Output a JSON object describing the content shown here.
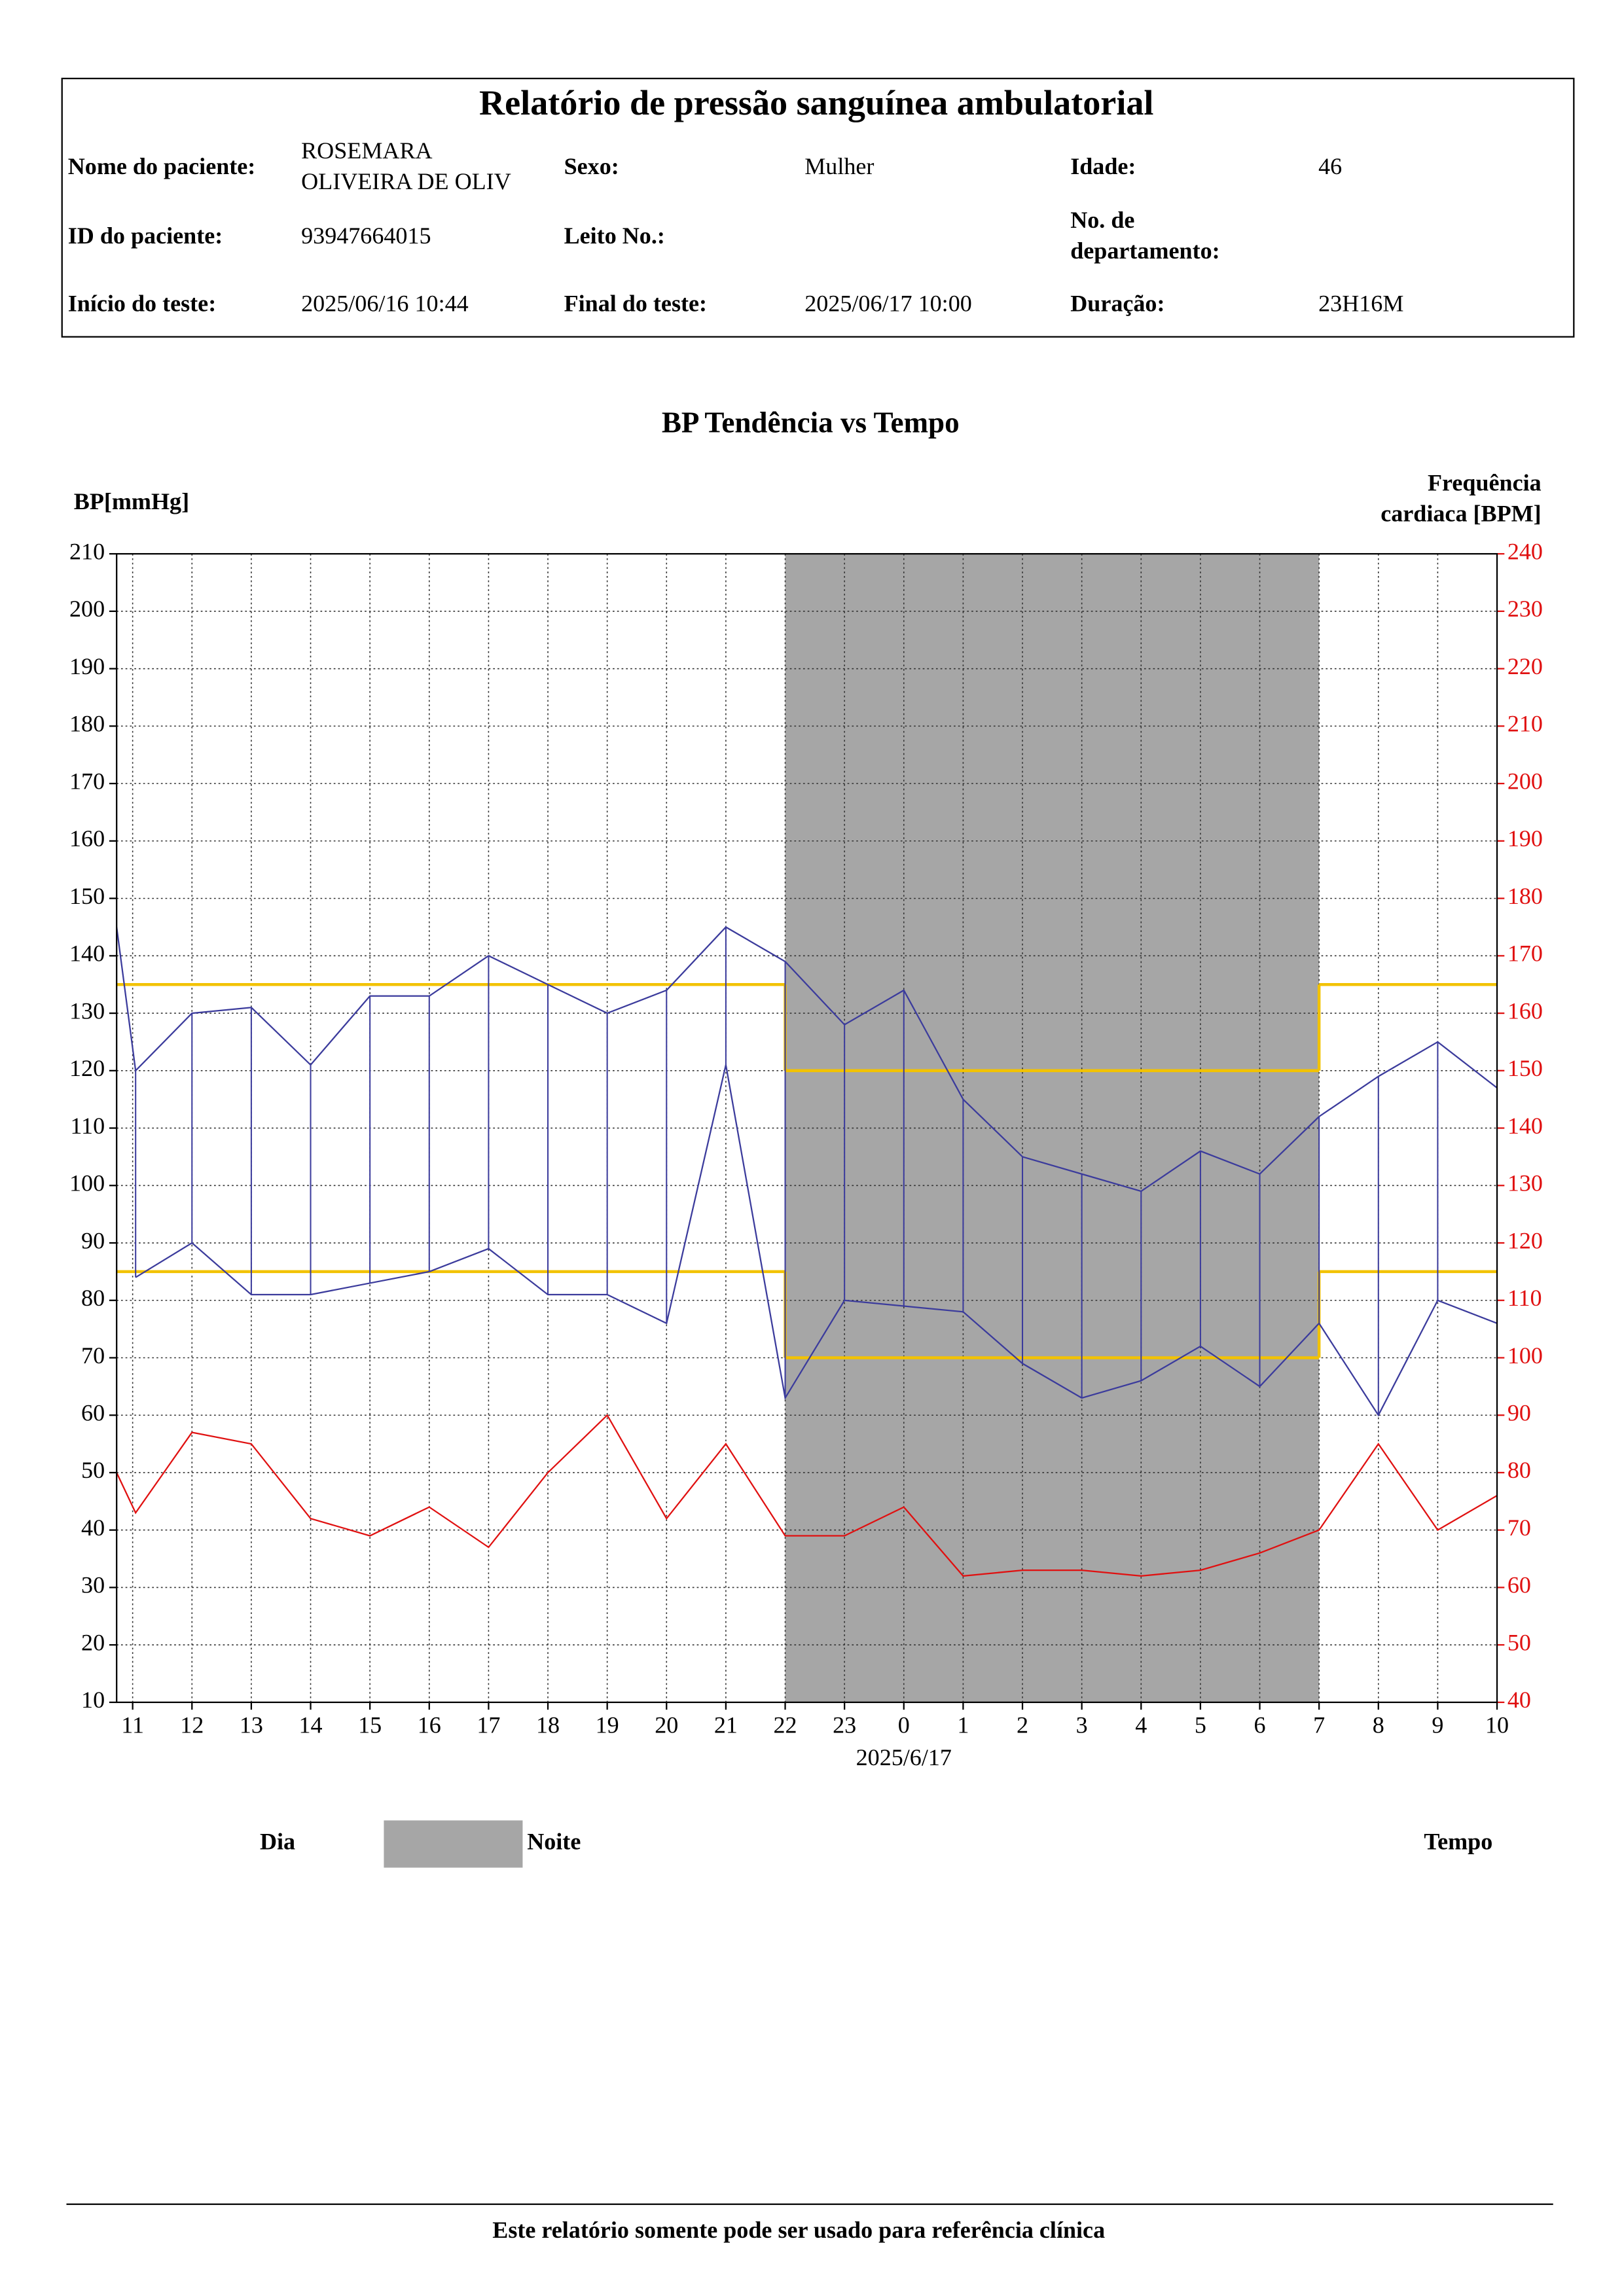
{
  "header": {
    "title": "Relatório de pressão sanguínea ambulatorial",
    "fields": [
      {
        "label": "Nome do paciente:",
        "value": [
          "ROSEMARA",
          "OLIVEIRA DE OLIV"
        ]
      },
      {
        "label": "Sexo:",
        "value": "Mulher"
      },
      {
        "label": "Idade:",
        "value": "46"
      },
      {
        "label": "ID do paciente:",
        "value": "93947664015"
      },
      {
        "label": "Leito No.:"
      },
      {
        "label": [
          "No. de",
          "departamento:"
        ]
      },
      {
        "label": "Início do teste:",
        "value": "2025/06/16 10:44"
      },
      {
        "label": "Final do teste:",
        "value": "2025/06/17 10:00"
      },
      {
        "label": "Duração:",
        "value": "23H16M"
      }
    ]
  },
  "chart_data": {
    "type": "line",
    "title": "BP Tendência vs Tempo",
    "ylabel": "BP[mmHg]",
    "y2label": [
      "Frequência",
      "cardiaca [BPM]"
    ],
    "xlabel": "Tempo",
    "x": [
      10.73,
      11.05,
      12,
      13,
      14,
      15,
      16,
      17,
      18,
      19,
      20,
      21,
      22,
      23,
      24,
      25,
      26,
      27,
      28,
      29,
      30,
      31,
      32,
      33,
      34
    ],
    "series": [
      {
        "color": "#3b3b9c",
        "values": [
          145,
          120,
          130,
          131,
          121,
          133,
          133,
          140,
          135,
          130,
          134,
          145,
          139,
          128,
          134,
          115,
          105,
          102,
          99,
          106,
          102,
          112,
          119,
          125,
          117
        ]
      },
      {
        "color": "#3b3b9c",
        "values": [
          null,
          84,
          90,
          81,
          81,
          83,
          85,
          89,
          81,
          81,
          76,
          121,
          63,
          80,
          79,
          78,
          69,
          63,
          66,
          72,
          65,
          76,
          60,
          80,
          76
        ]
      },
      {
        "color": "#e01010",
        "axis": "y2",
        "values": [
          80,
          73,
          87,
          85,
          72,
          69,
          74,
          67,
          80,
          90,
          72,
          85,
          69,
          69,
          74,
          62,
          63,
          63,
          62,
          63,
          66,
          70,
          85,
          70,
          76
        ]
      }
    ],
    "xlim": [
      10.73,
      34
    ],
    "xticks": [
      11,
      12,
      13,
      14,
      15,
      16,
      17,
      18,
      19,
      20,
      21,
      22,
      23,
      {
        "value": 24,
        "label": "0"
      },
      {
        "value": 25,
        "label": "1"
      },
      {
        "value": 26,
        "label": "2"
      },
      {
        "value": 27,
        "label": "3"
      },
      {
        "value": 28,
        "label": "4"
      },
      {
        "value": 29,
        "label": "5"
      },
      {
        "value": 30,
        "label": "6"
      },
      {
        "value": 31,
        "label": "7"
      },
      {
        "value": 32,
        "label": "8"
      },
      {
        "value": 33,
        "label": "9"
      },
      {
        "value": 34,
        "label": "10"
      }
    ],
    "date_label": {
      "value": 24,
      "label": "2025/6/17"
    },
    "ylim": [
      10,
      210
    ],
    "yticks": [
      10,
      20,
      30,
      40,
      50,
      60,
      70,
      80,
      90,
      100,
      110,
      120,
      130,
      140,
      150,
      160,
      170,
      180,
      190,
      200,
      210
    ],
    "y2lim": [
      40,
      240
    ],
    "y2ticks": [
      40,
      50,
      60,
      70,
      80,
      90,
      100,
      110,
      120,
      130,
      140,
      150,
      160,
      170,
      180,
      190,
      200,
      210,
      220,
      230,
      240
    ],
    "y2color": "#e01010",
    "night": {
      "start": 22,
      "end": 31,
      "color": "#a6a6a6"
    },
    "limits": {
      "color": "#f2c200",
      "day": {
        "systolic": 135,
        "diastolic": 85
      },
      "night": {
        "systolic": 120,
        "diastolic": 70
      }
    },
    "legend": {
      "day": "Dia",
      "night": "Noite"
    },
    "grid": true
  },
  "footer": "Este relatório somente pode ser usado para referência clínica"
}
